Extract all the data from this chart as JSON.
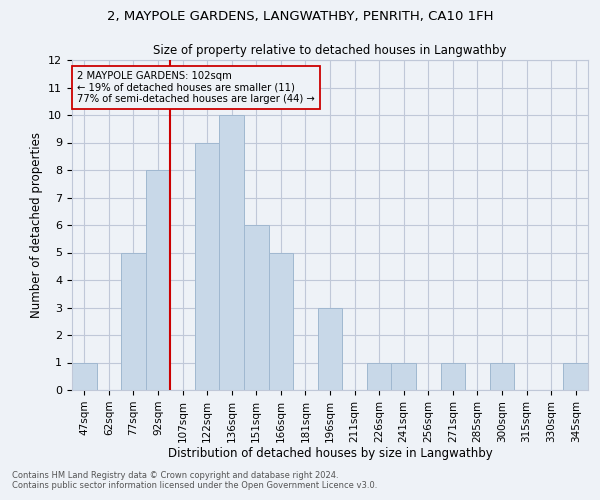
{
  "title1": "2, MAYPOLE GARDENS, LANGWATHBY, PENRITH, CA10 1FH",
  "title2": "Size of property relative to detached houses in Langwathby",
  "xlabel": "Distribution of detached houses by size in Langwathby",
  "ylabel": "Number of detached properties",
  "footnote1": "Contains HM Land Registry data © Crown copyright and database right 2024.",
  "footnote2": "Contains public sector information licensed under the Open Government Licence v3.0.",
  "bar_labels": [
    "47sqm",
    "62sqm",
    "77sqm",
    "92sqm",
    "107sqm",
    "122sqm",
    "136sqm",
    "151sqm",
    "166sqm",
    "181sqm",
    "196sqm",
    "211sqm",
    "226sqm",
    "241sqm",
    "256sqm",
    "271sqm",
    "285sqm",
    "300sqm",
    "315sqm",
    "330sqm",
    "345sqm"
  ],
  "bar_values": [
    1,
    0,
    5,
    8,
    0,
    9,
    10,
    6,
    5,
    0,
    3,
    0,
    1,
    1,
    0,
    1,
    0,
    1,
    0,
    0,
    1
  ],
  "bar_color": "#c8d8e8",
  "bar_edgecolor": "#a0b8d0",
  "vline_x_index": 4,
  "vline_color": "#cc0000",
  "annotation_box_color": "#cc0000",
  "property_label": "2 MAYPOLE GARDENS: 102sqm",
  "pct_smaller": 19,
  "n_smaller": 11,
  "pct_larger_semi": 77,
  "n_larger_semi": 44,
  "ylim": [
    0,
    12
  ],
  "yticks": [
    0,
    1,
    2,
    3,
    4,
    5,
    6,
    7,
    8,
    9,
    10,
    11,
    12
  ],
  "grid_color": "#c0c8d8",
  "background_color": "#eef2f7"
}
